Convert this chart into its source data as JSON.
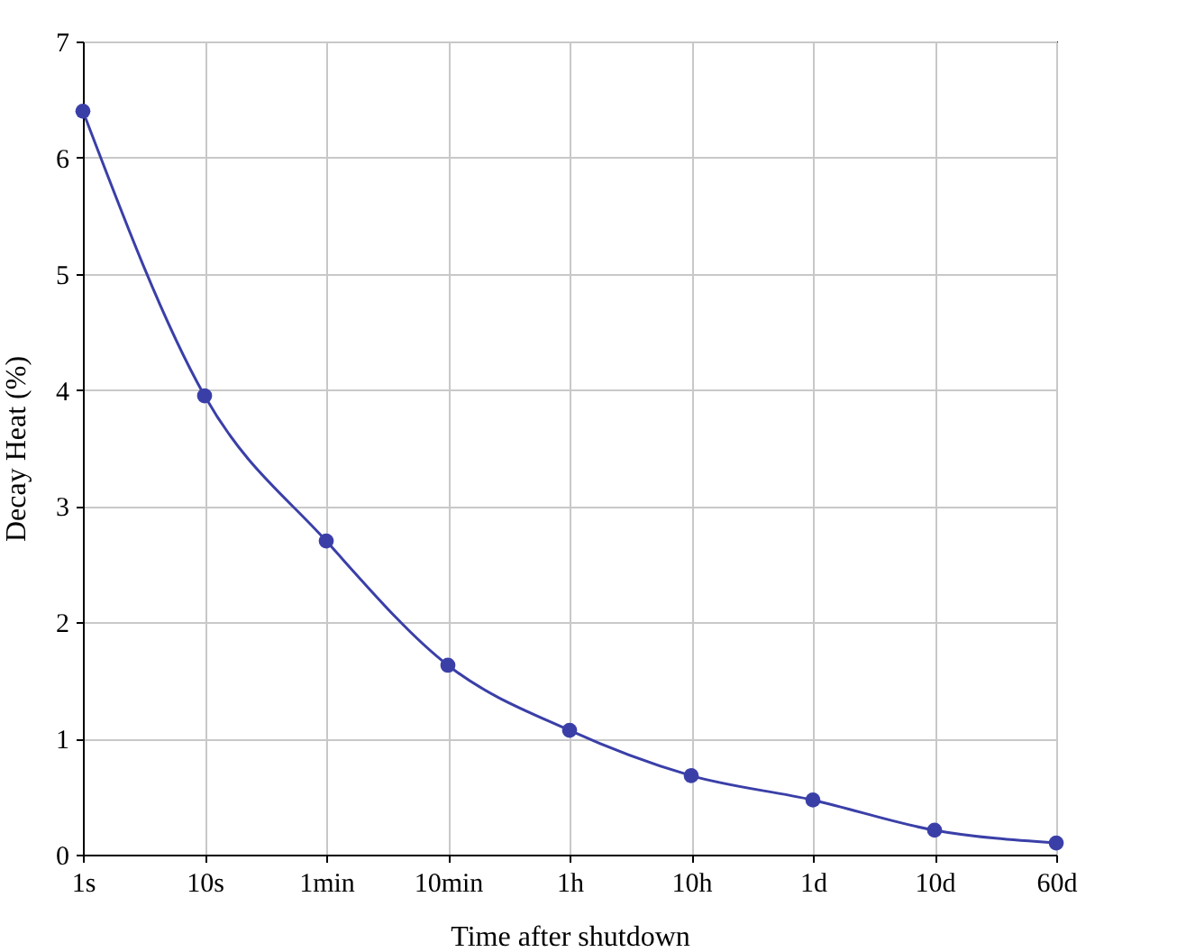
{
  "chart_data": {
    "type": "line",
    "xlabel": "Time after shutdown",
    "ylabel": "Decay Heat (%)",
    "categories": [
      "1s",
      "10s",
      "1min",
      "10min",
      "1h",
      "10h",
      "1d",
      "10d",
      "60d"
    ],
    "series": [
      {
        "color": "#3a3fa8",
        "values": [
          6.4,
          3.95,
          2.7,
          1.63,
          1.07,
          0.68,
          0.47,
          0.21,
          0.1
        ]
      }
    ],
    "ylim": [
      0,
      7
    ],
    "yticks": [
      0,
      1,
      2,
      3,
      4,
      5,
      6,
      7
    ],
    "grid": true,
    "marker": "circle",
    "line_style": "solid"
  }
}
